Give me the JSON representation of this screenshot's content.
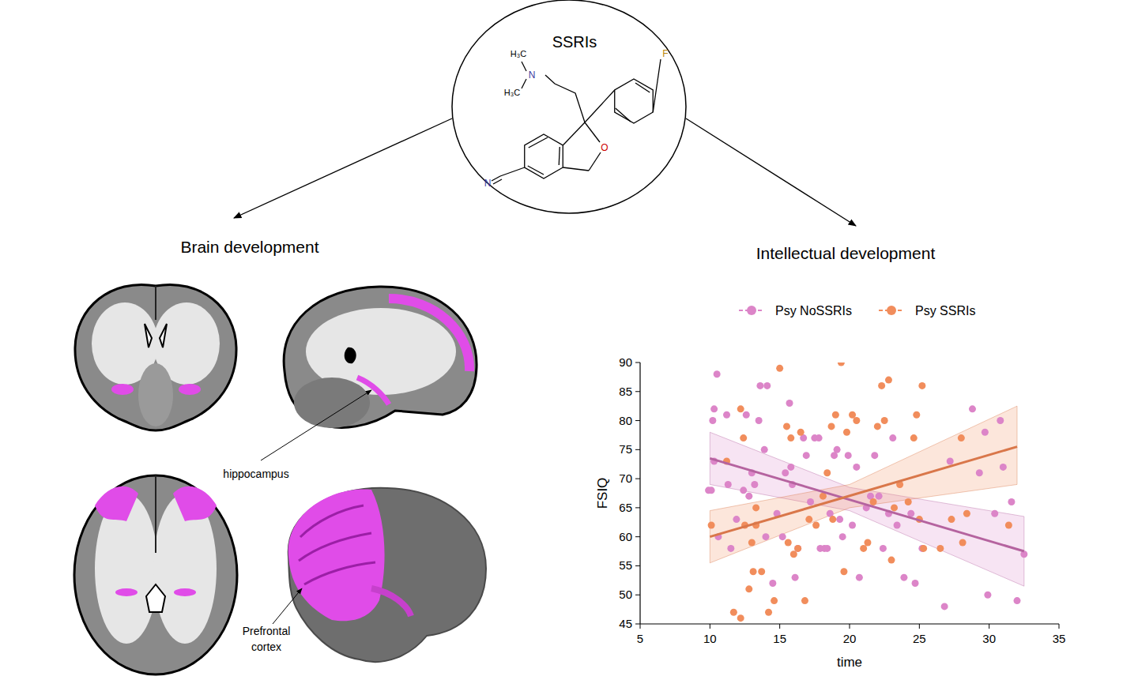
{
  "header": {
    "title": "SSRIs"
  },
  "molecule": {
    "labels": {
      "methyl_top": "H₃C",
      "methyl_bottom": "H₃C",
      "amine": "N",
      "fluorine": "F",
      "oxygen": "O",
      "nitrile": "N"
    }
  },
  "panels": {
    "left": {
      "title": "Brain development",
      "hippocampus": "hippocampus",
      "prefrontal_lines": [
        "Prefrontal",
        "cortex"
      ]
    },
    "right": {
      "title": "Intellectual development"
    }
  },
  "chart_data": {
    "type": "scatter",
    "xlabel": "time",
    "ylabel": "FSIQ",
    "xlim": [
      5,
      35
    ],
    "xticks": [
      5,
      10,
      15,
      20,
      25,
      30,
      35
    ],
    "ylim": [
      45,
      90
    ],
    "yticks": [
      45,
      50,
      55,
      60,
      65,
      70,
      75,
      80,
      85,
      90
    ],
    "grid": false,
    "legend": "top",
    "marker": "circle",
    "series": [
      {
        "name": "Psy NoSSRIs",
        "color": "#dc85c8",
        "fit_color": "#b5639f",
        "x": [
          9.9,
          10.1,
          10.2,
          10.3,
          10.5,
          10.3,
          10.6,
          11.2,
          11.3,
          11.5,
          11.9,
          12.4,
          12.6,
          12.8,
          13.0,
          13.2,
          13.5,
          13.6,
          13.9,
          14.1,
          14.0,
          14.5,
          14.8,
          15.2,
          15.4,
          15.7,
          15.8,
          15.9,
          16.1,
          16.3,
          16.7,
          16.9,
          17.2,
          17.5,
          17.8,
          17.9,
          18.2,
          18.4,
          18.6,
          18.9,
          19.1,
          19.3,
          19.5,
          19.9,
          20.2,
          20.5,
          20.7,
          21.2,
          21.5,
          21.8,
          22.1,
          22.4,
          22.8,
          23.1,
          23.4,
          23.9,
          24.4,
          24.7,
          25.2,
          26.8,
          27.2,
          28.8,
          29.3,
          29.7,
          29.9,
          30.4,
          30.8,
          31.0,
          31.6,
          32.0,
          32.5
        ],
        "values": [
          68,
          68,
          80,
          82,
          88,
          73,
          60,
          81,
          69,
          58,
          63,
          68,
          81,
          67,
          71,
          69,
          80,
          86,
          75,
          86,
          60,
          52,
          64,
          60,
          71,
          83,
          72,
          69,
          53,
          58,
          77,
          74,
          66,
          77,
          77,
          58,
          58,
          58,
          64,
          74,
          75,
          63,
          60,
          74,
          62,
          72,
          53,
          65,
          67,
          74,
          67,
          58,
          64,
          77,
          62,
          53,
          64,
          52,
          58,
          48,
          73,
          82,
          71,
          78,
          50,
          64,
          80,
          72,
          66,
          49,
          57
        ],
        "fit": {
          "x": [
            10,
            32.5
          ],
          "values": [
            73.5,
            57.5
          ]
        },
        "band": {
          "x": [
            10,
            20,
            32.5
          ],
          "lower": [
            69,
            64.5,
            51.5
          ],
          "upper": [
            78,
            68.5,
            63.5
          ]
        }
      },
      {
        "name": "Psy SSRIs",
        "color": "#f18d5c",
        "fit_color": "#d9774a",
        "x": [
          10.1,
          11.2,
          11.7,
          12.2,
          12.2,
          12.4,
          12.5,
          12.8,
          13.0,
          13.1,
          13.3,
          13.7,
          13.3,
          14.2,
          14.6,
          15.0,
          15.5,
          15.6,
          15.8,
          16.0,
          16.3,
          16.5,
          16.8,
          17.1,
          17.6,
          18.1,
          18.4,
          18.7,
          18.8,
          19.0,
          19.4,
          19.6,
          19.8,
          20.2,
          20.5,
          21.0,
          21.3,
          21.7,
          22.0,
          22.3,
          22.5,
          22.8,
          23.0,
          23.2,
          23.6,
          24.2,
          24.6,
          24.8,
          25.0,
          25.2,
          25.3,
          26.5,
          27.3,
          28.0,
          28.1,
          28.4,
          31.4
        ],
        "values": [
          62,
          73,
          47,
          46,
          82,
          77,
          62,
          51,
          59,
          54,
          65,
          54,
          62,
          47,
          49,
          89,
          79,
          59,
          77,
          57,
          58,
          78,
          49,
          63,
          62,
          67,
          71,
          79,
          63,
          81,
          90,
          54,
          78,
          81,
          80,
          58,
          59,
          66,
          79,
          86,
          80,
          87,
          56,
          65,
          69,
          66,
          77,
          81,
          63,
          86,
          58,
          58,
          63,
          77,
          59,
          64,
          62
        ],
        "fit": {
          "x": [
            10,
            32
          ],
          "values": [
            60,
            75.5
          ]
        },
        "band": {
          "x": [
            10,
            20,
            32
          ],
          "lower": [
            55.5,
            65,
            69
          ],
          "upper": [
            64.5,
            69,
            82.5
          ]
        }
      }
    ]
  }
}
